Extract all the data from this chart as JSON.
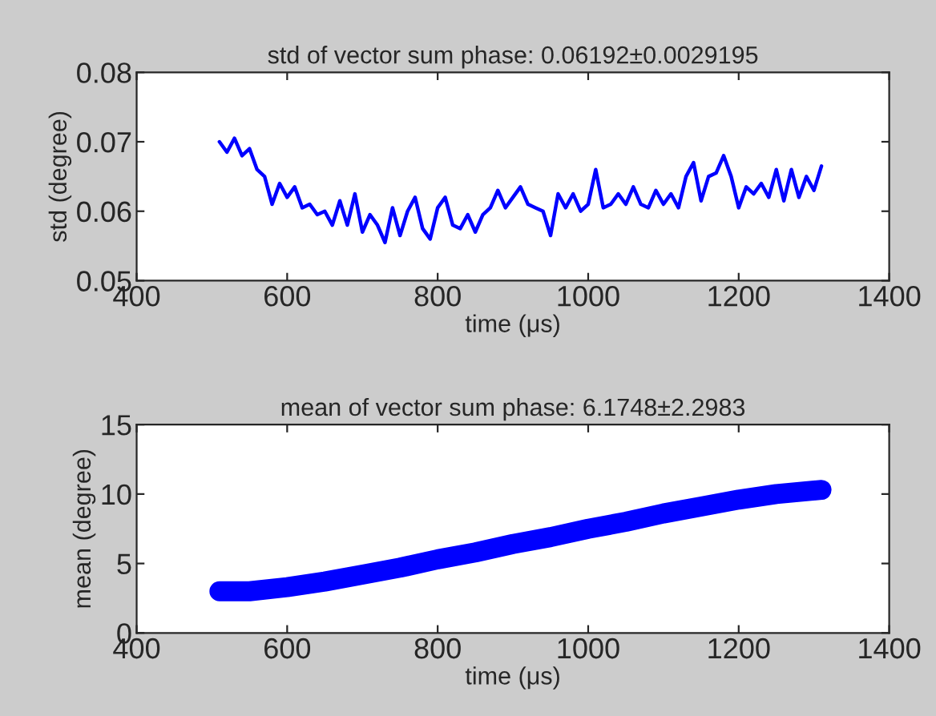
{
  "chart_data": [
    {
      "type": "line",
      "title": "std of vector sum phase: 0.06192±0.0029195",
      "xlabel": "time (μs)",
      "ylabel": "std (degree)",
      "x": [
        510,
        520,
        530,
        540,
        550,
        560,
        570,
        580,
        590,
        600,
        610,
        620,
        630,
        640,
        650,
        660,
        670,
        680,
        690,
        700,
        710,
        720,
        730,
        740,
        750,
        760,
        770,
        780,
        790,
        800,
        810,
        820,
        830,
        840,
        850,
        860,
        870,
        880,
        890,
        900,
        910,
        920,
        930,
        940,
        950,
        960,
        970,
        980,
        990,
        1000,
        1010,
        1020,
        1030,
        1040,
        1050,
        1060,
        1070,
        1080,
        1090,
        1100,
        1110,
        1120,
        1130,
        1140,
        1150,
        1160,
        1170,
        1180,
        1190,
        1200,
        1210,
        1220,
        1230,
        1240,
        1250,
        1260,
        1270,
        1280,
        1290,
        1300,
        1310
      ],
      "series": [
        {
          "color": "#0000ff",
          "values": [
            0.07,
            0.0685,
            0.0705,
            0.068,
            0.069,
            0.066,
            0.065,
            0.061,
            0.064,
            0.062,
            0.0635,
            0.0605,
            0.061,
            0.0595,
            0.06,
            0.058,
            0.0615,
            0.058,
            0.0625,
            0.057,
            0.0595,
            0.058,
            0.0555,
            0.0605,
            0.0565,
            0.06,
            0.062,
            0.0575,
            0.056,
            0.0605,
            0.062,
            0.058,
            0.0575,
            0.0595,
            0.057,
            0.0595,
            0.0605,
            0.063,
            0.0605,
            0.062,
            0.0635,
            0.061,
            0.0605,
            0.06,
            0.0565,
            0.0625,
            0.0605,
            0.0625,
            0.06,
            0.061,
            0.066,
            0.0605,
            0.061,
            0.0625,
            0.061,
            0.0635,
            0.061,
            0.0605,
            0.063,
            0.061,
            0.0625,
            0.0605,
            0.065,
            0.067,
            0.0615,
            0.065,
            0.0655,
            0.068,
            0.065,
            0.0605,
            0.0635,
            0.0625,
            0.064,
            0.062,
            0.066,
            0.0615,
            0.066,
            0.062,
            0.065,
            0.063,
            0.0665
          ]
        }
      ],
      "xlim": [
        400,
        1400
      ],
      "xticks": [
        400,
        600,
        800,
        1000,
        1200,
        1400
      ],
      "ylim": [
        0.05,
        0.08
      ],
      "yticks": [
        0.05,
        0.06,
        0.07,
        0.08
      ],
      "grid": false,
      "legend": false
    },
    {
      "type": "line",
      "title": "mean of vector sum phase: 6.1748±2.2983",
      "xlabel": "time (μs)",
      "ylabel": "mean (degree)",
      "x": [
        510,
        550,
        600,
        650,
        700,
        750,
        800,
        850,
        900,
        950,
        1000,
        1050,
        1100,
        1150,
        1200,
        1250,
        1310
      ],
      "series": [
        {
          "color": "#0000ff",
          "values": [
            3.0,
            3.0,
            3.3,
            3.7,
            4.2,
            4.7,
            5.3,
            5.8,
            6.4,
            6.9,
            7.5,
            8.0,
            8.6,
            9.1,
            9.6,
            10.0,
            10.3
          ]
        }
      ],
      "xlim": [
        400,
        1400
      ],
      "xticks": [
        400,
        600,
        800,
        1000,
        1200,
        1400
      ],
      "ylim": [
        0,
        15
      ],
      "yticks": [
        0,
        5,
        10,
        15
      ],
      "grid": false,
      "legend": false
    }
  ]
}
